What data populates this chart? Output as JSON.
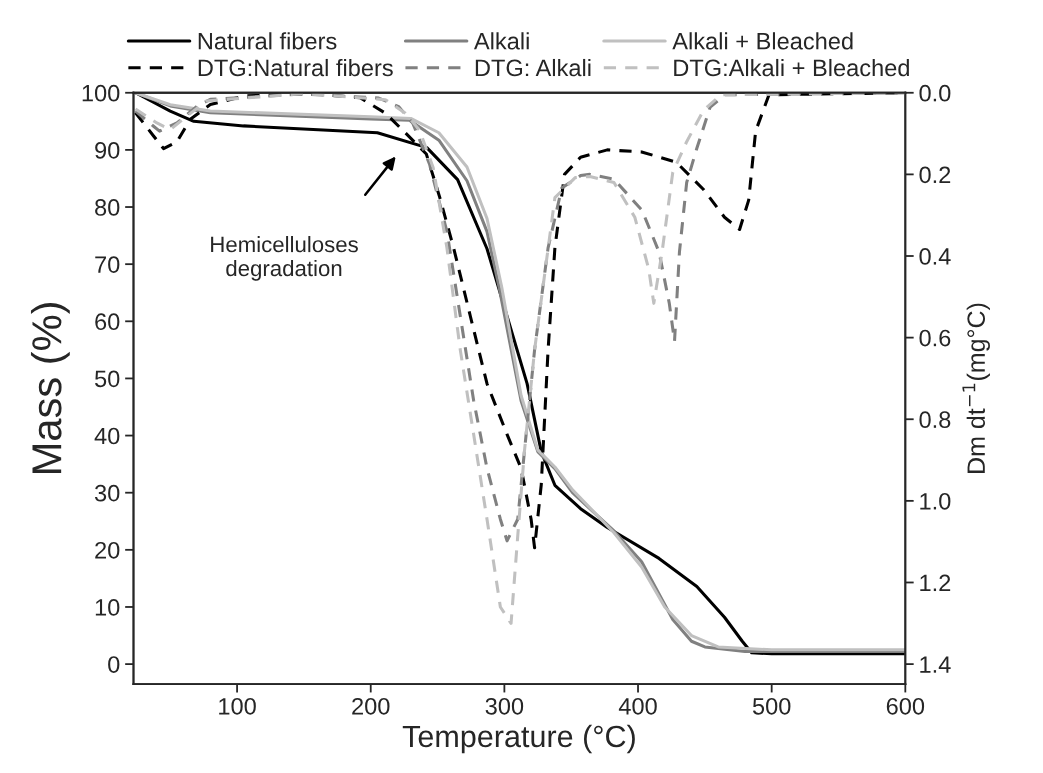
{
  "chart_data": {
    "type": "line",
    "xlabel": "Temperature (°C)",
    "ylabel": "Mass (%)",
    "y2label": "Dm dt$^{−1}$(mg°C)",
    "xlim": [
      22.5,
      600
    ],
    "xticks": [
      100,
      200,
      300,
      400,
      500,
      600
    ],
    "ylim": [
      -3.5,
      100
    ],
    "yticks": [
      0,
      10,
      20,
      30,
      40,
      50,
      60,
      70,
      80,
      90,
      100
    ],
    "y2lim": [
      1.449,
      0
    ],
    "y2ticks": [
      {
        "value": 0,
        "label": "0.0"
      },
      0.2,
      0.4,
      0.6,
      0.8,
      {
        "value": 1,
        "label": "1.0"
      },
      1.2,
      1.4
    ],
    "grid": false,
    "legend": "top",
    "line_style": "solid",
    "annotations": [
      "Hemicelluloses\ndegradation"
    ],
    "series": [
      {
        "name": "Natural fibers",
        "color": "#000000",
        "x": [
          24,
          50,
          67.6,
          104.8,
          205,
          242,
          265,
          287,
          302,
          317,
          327.6,
          337.8,
          357,
          377,
          415.7,
          444,
          464.7,
          478,
          485,
          500,
          600
        ],
        "values": [
          100,
          96.8,
          95.0,
          94.2,
          93.0,
          90.4,
          84.8,
          72.7,
          60.9,
          49.1,
          37.2,
          31.3,
          27.2,
          23.9,
          18.5,
          13.6,
          8.2,
          4.0,
          2.0,
          1.8,
          1.8
        ]
      },
      {
        "name": "Alkali",
        "color": "#808080",
        "x": [
          24,
          50,
          80,
          200,
          229,
          251,
          272,
          287,
          296,
          312.5,
          325,
          337.8,
          351,
          382,
          402.7,
          426,
          440,
          450,
          480,
          600
        ],
        "values": [
          100,
          97.7,
          96.5,
          95.4,
          95.2,
          91.7,
          84.6,
          75.7,
          66,
          46.1,
          37.2,
          34.2,
          30,
          23.3,
          17.9,
          7.8,
          4,
          3,
          2.2,
          2.2
        ]
      },
      {
        "name": "Alkali + Bleached",
        "color": "#c0c0c0",
        "x": [
          24,
          50,
          80,
          200,
          230,
          251,
          272,
          287,
          298,
          312.5,
          325,
          337.8,
          351,
          382,
          402.7,
          420,
          440,
          460,
          500,
          600
        ],
        "values": [
          100,
          97.9,
          96.8,
          95.8,
          95.5,
          93,
          87,
          78,
          66,
          47,
          37.5,
          34.5,
          30.5,
          23,
          17,
          10,
          5,
          3,
          2.5,
          2.5
        ]
      },
      {
        "name": "DTG:Natural fibers",
        "color": "#000000",
        "axis": "y2",
        "line_style": "dashed",
        "x": [
          24,
          37.5,
          45,
          55,
          65,
          80,
          105,
          155,
          192,
          211,
          224,
          241.6,
          251.7,
          262,
          274.5,
          287,
          302,
          312.5,
          320,
          322.6,
          327.6,
          332.7,
          337.8,
          345,
          357,
          377,
          402.7,
          428.6,
          449,
          464.7,
          476,
          482.8,
          488,
          498,
          600
        ],
        "values": [
          0.049,
          0.106,
          0.137,
          0.12,
          0.065,
          0.029,
          0.008,
          0.002,
          0.012,
          0.05,
          0.092,
          0.15,
          0.257,
          0.38,
          0.547,
          0.713,
          0.837,
          0.92,
          1.045,
          1.115,
          0.96,
          0.63,
          0.38,
          0.2,
          0.158,
          0.14,
          0.145,
          0.17,
          0.237,
          0.305,
          0.335,
          0.263,
          0.094,
          0.005,
          0.0
        ]
      },
      {
        "name": "DTG: Alkali",
        "color": "#808080",
        "axis": "y2",
        "line_style": "dashed",
        "x": [
          24,
          37.5,
          42,
          55,
          70,
          80,
          150,
          206,
          221,
          231.5,
          244,
          257,
          267,
          277,
          287,
          297,
          302,
          310,
          315,
          322.6,
          332.7,
          343,
          357,
          364,
          382,
          403,
          415.7,
          423.4,
          427.3,
          431,
          436.4,
          444,
          454,
          465,
          600
        ],
        "values": [
          0.045,
          0.082,
          0.094,
          0.074,
          0.033,
          0.016,
          0.003,
          0.013,
          0.034,
          0.075,
          0.175,
          0.34,
          0.547,
          0.754,
          0.92,
          1.045,
          1.098,
          1.045,
          0.879,
          0.63,
          0.38,
          0.233,
          0.203,
          0.2,
          0.212,
          0.288,
          0.39,
          0.516,
          0.609,
          0.39,
          0.22,
          0.136,
          0.035,
          0.005,
          0.0
        ]
      },
      {
        "name": "DTG:Alkali + Bleached",
        "color": "#c0c0c0",
        "axis": "y2",
        "line_style": "dashed",
        "x": [
          24,
          40,
          50,
          62.6,
          77,
          150,
          211,
          226,
          236.5,
          246.7,
          257,
          267,
          277,
          287,
          297,
          305,
          310,
          315,
          322.6,
          337.8,
          353,
          364,
          382,
          397.6,
          408,
          411.8,
          418,
          426,
          436.4,
          449,
          462,
          600
        ],
        "values": [
          0.04,
          0.074,
          0.09,
          0.057,
          0.02,
          0.002,
          0.017,
          0.05,
          0.092,
          0.183,
          0.38,
          0.63,
          0.837,
          1.045,
          1.26,
          1.3,
          1.086,
          0.879,
          0.63,
          0.257,
          0.208,
          0.205,
          0.22,
          0.305,
          0.432,
          0.516,
          0.39,
          0.195,
          0.12,
          0.043,
          0.005,
          0.0
        ]
      }
    ]
  }
}
